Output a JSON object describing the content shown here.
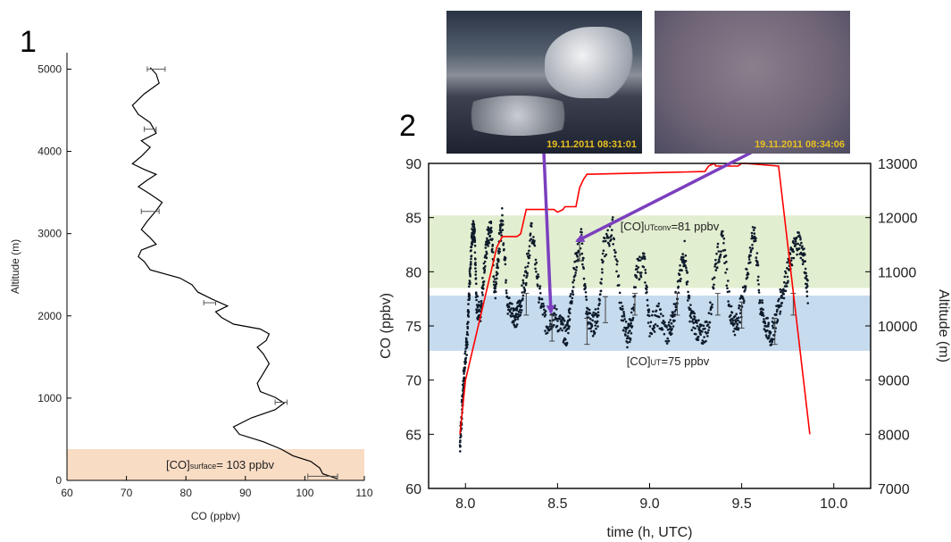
{
  "panel_labels": [
    "1",
    "2"
  ],
  "photos": [
    {
      "timestamp": "19.11.2011 08:31:01"
    },
    {
      "timestamp": "19.11.2011 08:34:06"
    }
  ],
  "colors": {
    "surface_band": "#f9dcc4",
    "utconv_band": "#e2eed0",
    "ut_band": "#c6dbee",
    "altitude_line": "#ff0000",
    "arrow": "#7b3fbe",
    "profile_line": "#000000",
    "points": "#0d1a2a"
  },
  "chart_data": [
    {
      "type": "line",
      "xlabel": "CO (ppbv)",
      "ylabel": "Altitude (m)",
      "xlim": [
        60,
        110
      ],
      "ylim": [
        0,
        5200
      ],
      "xticks": [
        60,
        70,
        80,
        90,
        100,
        110
      ],
      "yticks": [
        0,
        1000,
        2000,
        3000,
        4000,
        5000
      ],
      "grid": false,
      "series": [
        {
          "x": [
            105.5,
            103,
            102.5,
            101,
            98,
            96,
            93,
            89,
            88,
            91,
            95,
            96.5,
            95,
            92.5,
            92,
            93,
            94,
            93,
            92,
            93.5,
            94,
            92.5,
            88,
            86,
            85,
            87,
            84.5,
            82,
            81,
            79,
            74,
            73,
            72,
            72.5,
            75,
            74,
            72.5,
            73.5,
            75,
            76,
            74,
            72,
            73.5,
            75,
            73,
            71,
            72.5,
            74,
            72.5,
            75,
            74,
            72,
            71,
            73,
            75.5,
            75,
            74
          ],
          "y": [
            20,
            80,
            150,
            230,
            300,
            380,
            470,
            560,
            650,
            760,
            860,
            940,
            1010,
            1080,
            1180,
            1300,
            1420,
            1540,
            1620,
            1700,
            1780,
            1840,
            1900,
            1980,
            2050,
            2120,
            2200,
            2290,
            2380,
            2460,
            2560,
            2660,
            2720,
            2800,
            2870,
            2950,
            3050,
            3150,
            3280,
            3380,
            3480,
            3570,
            3650,
            3720,
            3780,
            3850,
            3940,
            4050,
            4130,
            4220,
            4350,
            4450,
            4560,
            4700,
            4830,
            4940,
            5020
          ]
        }
      ],
      "error_bars": [
        {
          "y": 50,
          "x": 103,
          "err": 2.5
        },
        {
          "y": 950,
          "x": 96,
          "err": 1
        },
        {
          "y": 2160,
          "x": 84,
          "err": 1
        },
        {
          "y": 3270,
          "x": 74,
          "err": 1.5
        },
        {
          "y": 4270,
          "x": 74,
          "err": 1
        },
        {
          "y": 5000,
          "x": 75,
          "err": 1.5
        }
      ],
      "band": {
        "y0": 0,
        "y1": 380,
        "label_main": "[CO]",
        "label_sub": "surface",
        "label_value": "= 103 ppbv"
      }
    },
    {
      "type": "scatter",
      "xlabel": "time (h, UTC)",
      "ylabel": "CO (ppbv)",
      "y2label": "Altitude (m)",
      "xlim": [
        7.8,
        10.2
      ],
      "ylim": [
        60,
        90
      ],
      "y2lim": [
        7000,
        13000
      ],
      "xticks": [
        8.0,
        8.5,
        9.0,
        9.5,
        10.0
      ],
      "yticks": [
        60,
        65,
        70,
        75,
        80,
        85,
        90
      ],
      "y2ticks": [
        7000,
        8000,
        9000,
        10000,
        11000,
        12000,
        13000
      ],
      "grid": false,
      "bands": [
        {
          "y0": 78.5,
          "y1": 85.2,
          "label_main": "[CO]",
          "label_sub": "UTconv",
          "label_value": "=81 ppbv"
        },
        {
          "y0": 72.7,
          "y1": 77.8,
          "label_main": "[CO]",
          "label_sub": "UT",
          "label_value": "=75 ppbv"
        }
      ],
      "co_trace": {
        "t": [
          7.97,
          7.98,
          7.99,
          8.0,
          8.01,
          8.02,
          8.03,
          8.04,
          8.05,
          8.06,
          8.08,
          8.1,
          8.12,
          8.14,
          8.16,
          8.18,
          8.2,
          8.23,
          8.26,
          8.28,
          8.3,
          8.33,
          8.36,
          8.4,
          8.44,
          8.48,
          8.52,
          8.55,
          8.57,
          8.6,
          8.63,
          8.66,
          8.69,
          8.72,
          8.75,
          8.8,
          8.85,
          8.88,
          8.9,
          8.93,
          8.97,
          9.0,
          9.05,
          9.1,
          9.13,
          9.16,
          9.19,
          9.22,
          9.25,
          9.28,
          9.32,
          9.36,
          9.4,
          9.44,
          9.47,
          9.5,
          9.54,
          9.57,
          9.6,
          9.63,
          9.66,
          9.69,
          9.72,
          9.75,
          9.78,
          9.81,
          9.84,
          9.86
        ],
        "co": [
          64,
          67,
          70,
          72,
          74,
          78,
          82,
          84,
          83,
          77,
          76,
          80,
          83,
          84,
          78,
          82,
          85,
          77,
          76,
          76,
          77,
          80,
          84,
          78,
          75,
          76,
          75,
          74,
          77,
          81,
          83,
          76,
          75,
          76,
          82,
          84,
          76,
          74,
          75,
          80,
          81,
          75,
          76,
          74,
          76,
          79,
          82,
          76,
          75,
          74,
          75,
          81,
          83,
          76,
          75,
          77,
          81,
          84,
          77,
          75,
          74,
          76,
          78,
          80,
          82,
          83,
          81,
          78
        ]
      },
      "sample_error_bars": [
        {
          "t": 8.33,
          "co": 77,
          "err": 1
        },
        {
          "t": 8.47,
          "co": 74.8,
          "err": 1.2
        },
        {
          "t": 8.62,
          "co": 82,
          "err": 1
        },
        {
          "t": 8.66,
          "co": 74.5,
          "err": 1.2
        },
        {
          "t": 8.76,
          "co": 76.5,
          "err": 1.2
        },
        {
          "t": 8.92,
          "co": 77,
          "err": 1
        },
        {
          "t": 9.15,
          "co": 77,
          "err": 1
        },
        {
          "t": 9.37,
          "co": 77,
          "err": 1
        },
        {
          "t": 9.5,
          "co": 76,
          "err": 1.2
        },
        {
          "t": 9.68,
          "co": 74.5,
          "err": 1.2
        },
        {
          "t": 9.78,
          "co": 77,
          "err": 1
        }
      ],
      "altitude": {
        "t": [
          7.97,
          8.0,
          8.17,
          8.2,
          8.28,
          8.3,
          8.33,
          8.48,
          8.5,
          8.53,
          8.54,
          8.6,
          8.62,
          8.64,
          8.66,
          8.69,
          9.3,
          9.32,
          9.35,
          9.36,
          9.48,
          9.5,
          9.52,
          9.7,
          9.87
        ],
        "alt": [
          8000,
          9000,
          11450,
          11650,
          11650,
          11700,
          12150,
          12150,
          12100,
          12150,
          12200,
          12200,
          12550,
          12700,
          12800,
          12800,
          12850,
          12950,
          13000,
          12950,
          12950,
          13000,
          13000,
          12950,
          8000
        ]
      }
    }
  ]
}
